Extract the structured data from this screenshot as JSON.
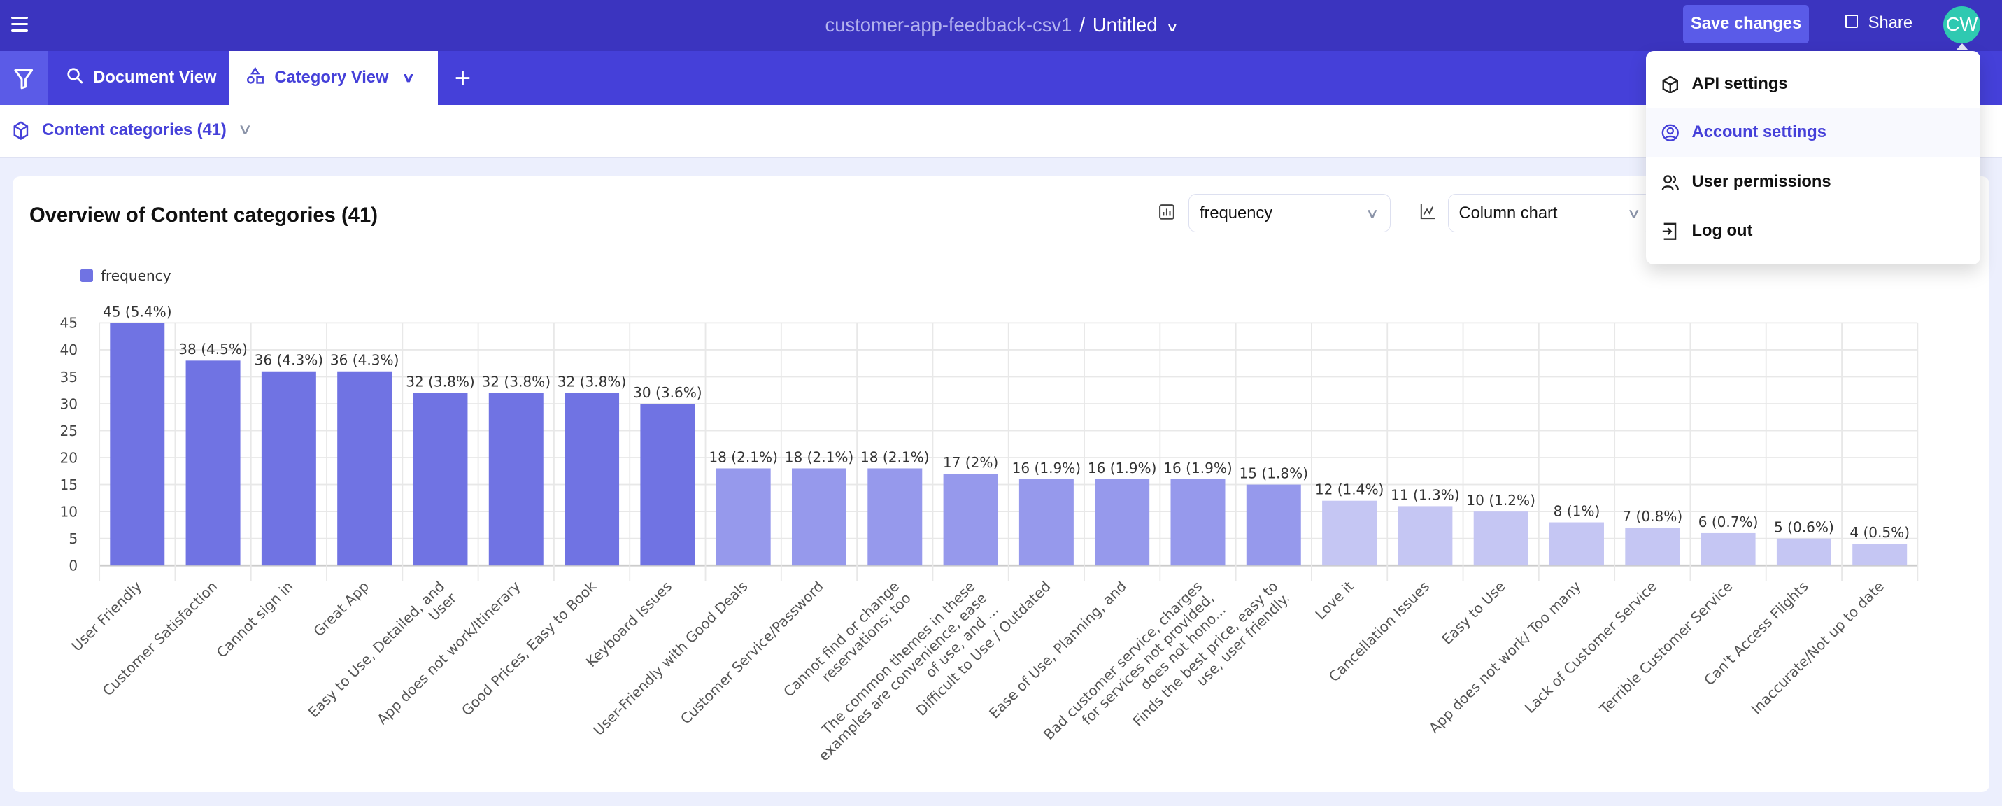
{
  "header": {
    "dataset": "customer-app-feedback-csv1",
    "separator": "/",
    "doc_title": "Untitled",
    "save_label": "Save changes",
    "share_label": "Share",
    "avatar_initials": "CW"
  },
  "tabs": [
    {
      "label": "Document View",
      "icon": "search-icon"
    },
    {
      "label": "Category View",
      "icon": "shapes-icon",
      "active": true
    }
  ],
  "subheader": {
    "label": "Content categories (41)"
  },
  "card": {
    "title": "Overview of Content categories (41)",
    "metric_select": "frequency",
    "chart_type_select": "Column chart"
  },
  "user_menu": {
    "items": [
      {
        "label": "API settings",
        "icon": "cube-icon"
      },
      {
        "label": "Account settings",
        "icon": "user-circle-icon",
        "highlighted": true
      },
      {
        "label": "User permissions",
        "icon": "users-icon"
      },
      {
        "label": "Log out",
        "icon": "logout-icon"
      }
    ]
  },
  "colors": {
    "topbar": "#3b34bf",
    "tabbar": "#4540d9",
    "accent": "#5a5be8",
    "bar_high": "#7073e3",
    "bar_mid": "#9699ec",
    "bar_low": "#c5c6f3",
    "avatar": "#2fc9b1"
  },
  "chart_data": {
    "type": "bar",
    "title": "",
    "xlabel": "",
    "ylabel": "",
    "ylim": [
      0,
      45
    ],
    "yticks": [
      0,
      5,
      10,
      15,
      20,
      25,
      30,
      35,
      40,
      45
    ],
    "grid": true,
    "legend": {
      "position": "top-left",
      "entries": [
        "frequency"
      ]
    },
    "series": [
      {
        "name": "frequency",
        "values": [
          45,
          38,
          36,
          36,
          32,
          32,
          32,
          30,
          18,
          18,
          18,
          17,
          16,
          16,
          16,
          15,
          12,
          11,
          10,
          8,
          7,
          6,
          5,
          4
        ],
        "labels": [
          "45 (5.4%)",
          "38 (4.5%)",
          "36 (4.3%)",
          "36 (4.3%)",
          "32 (3.8%)",
          "32 (3.8%)",
          "32 (3.8%)",
          "30 (3.6%)",
          "18 (2.1%)",
          "18 (2.1%)",
          "18 (2.1%)",
          "17 (2%)",
          "16 (1.9%)",
          "16 (1.9%)",
          "16 (1.9%)",
          "15 (1.8%)",
          "12 (1.4%)",
          "11 (1.3%)",
          "10 (1.2%)",
          "8 (1%)",
          "7 (0.8%)",
          "6 (0.7%)",
          "5 (0.6%)",
          "4 (0.5%)"
        ]
      }
    ],
    "categories": [
      [
        "User Friendly"
      ],
      [
        "Customer Satisfaction"
      ],
      [
        "Cannot sign in"
      ],
      [
        "Great App"
      ],
      [
        "Easy to Use, Detailed, and",
        "User"
      ],
      [
        "App does not work/Itinerary"
      ],
      [
        "Good Prices, Easy to Book"
      ],
      [
        "Keyboard Issues"
      ],
      [
        "User-Friendly with Good Deals"
      ],
      [
        "Customer Service/Password"
      ],
      [
        "Cannot find or change",
        "reservations; too"
      ],
      [
        "The common themes in these",
        "examples are convenience, ease",
        "of use, and ..."
      ],
      [
        "Difficult to Use / Outdated"
      ],
      [
        "Ease of Use, Planning, and"
      ],
      [
        "Bad customer service, charges",
        "for services not provided,",
        "does not hono..."
      ],
      [
        "Finds the best price, easy to",
        "use, user friendly."
      ],
      [
        "Love it"
      ],
      [
        "Cancellation Issues"
      ],
      [
        "Easy to Use"
      ],
      [
        "App does not work/ Too many"
      ],
      [
        "Lack of Customer Service"
      ],
      [
        "Terrible Customer Service"
      ],
      [
        "Can't Access Flights"
      ],
      [
        "Inaccurate/Not up to date"
      ]
    ]
  }
}
